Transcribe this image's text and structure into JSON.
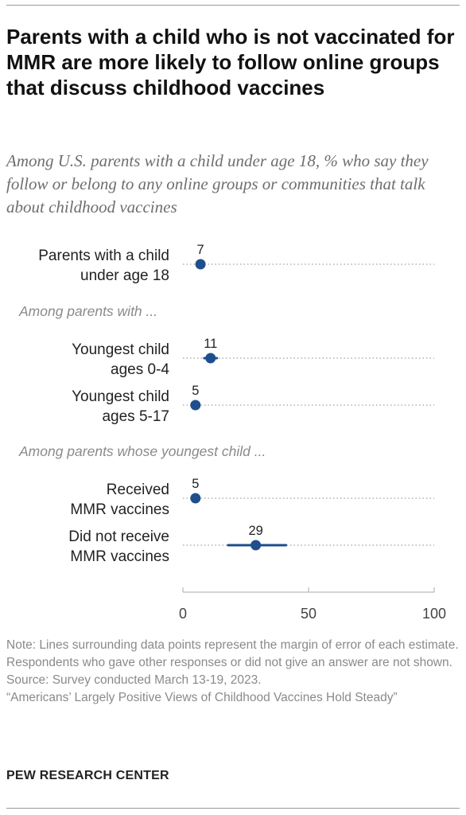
{
  "header": {
    "title": "Parents with a child who is not vaccinated for MMR are more likely to follow online groups that discuss childhood vaccines",
    "subtitle": "Among U.S. parents with a child under age 18, % who say they follow or belong to any online groups or communities that talk about childhood vaccines"
  },
  "chart_data": {
    "type": "scatter",
    "title": "Parents with a child who is not vaccinated for MMR are more likely to follow online groups that discuss childhood vaccines",
    "subtitle": "Among U.S. parents with a child under age 18, % who say they follow or belong to any online groups or communities that talk about childhood vaccines",
    "xlim": [
      0,
      100
    ],
    "xticks": [
      "0",
      "50",
      "100"
    ],
    "point_color": "#1f4e8c",
    "rows": [
      {
        "label": [
          "Parents with a child",
          "under age 18"
        ],
        "value": 7,
        "moe_low": 5.5,
        "moe_high": 8.5
      },
      {
        "section": "Among parents with ..."
      },
      {
        "label": [
          "Youngest child",
          "ages 0-4"
        ],
        "value": 11,
        "moe_low": 8.5,
        "moe_high": 13.5
      },
      {
        "label": [
          "Youngest child",
          "ages 5-17"
        ],
        "value": 5,
        "moe_low": 4,
        "moe_high": 6.5
      },
      {
        "section": "Among parents whose youngest child ..."
      },
      {
        "label": [
          "Received",
          "MMR vaccines"
        ],
        "value": 5,
        "moe_low": 4,
        "moe_high": 6
      },
      {
        "label": [
          "Did not receive",
          "MMR vaccines"
        ],
        "value": 29,
        "moe_low": 18,
        "moe_high": 41
      }
    ]
  },
  "footer": {
    "note": "Note: Lines surrounding data points represent the margin of error of each estimate. Respondents who gave other responses or did not give an answer are not shown.",
    "source": "Source: Survey conducted March 13-19, 2023.",
    "report": "“Americans’ Largely Positive Views of Childhood Vaccines Hold Steady”",
    "brand": "PEW RESEARCH CENTER"
  }
}
